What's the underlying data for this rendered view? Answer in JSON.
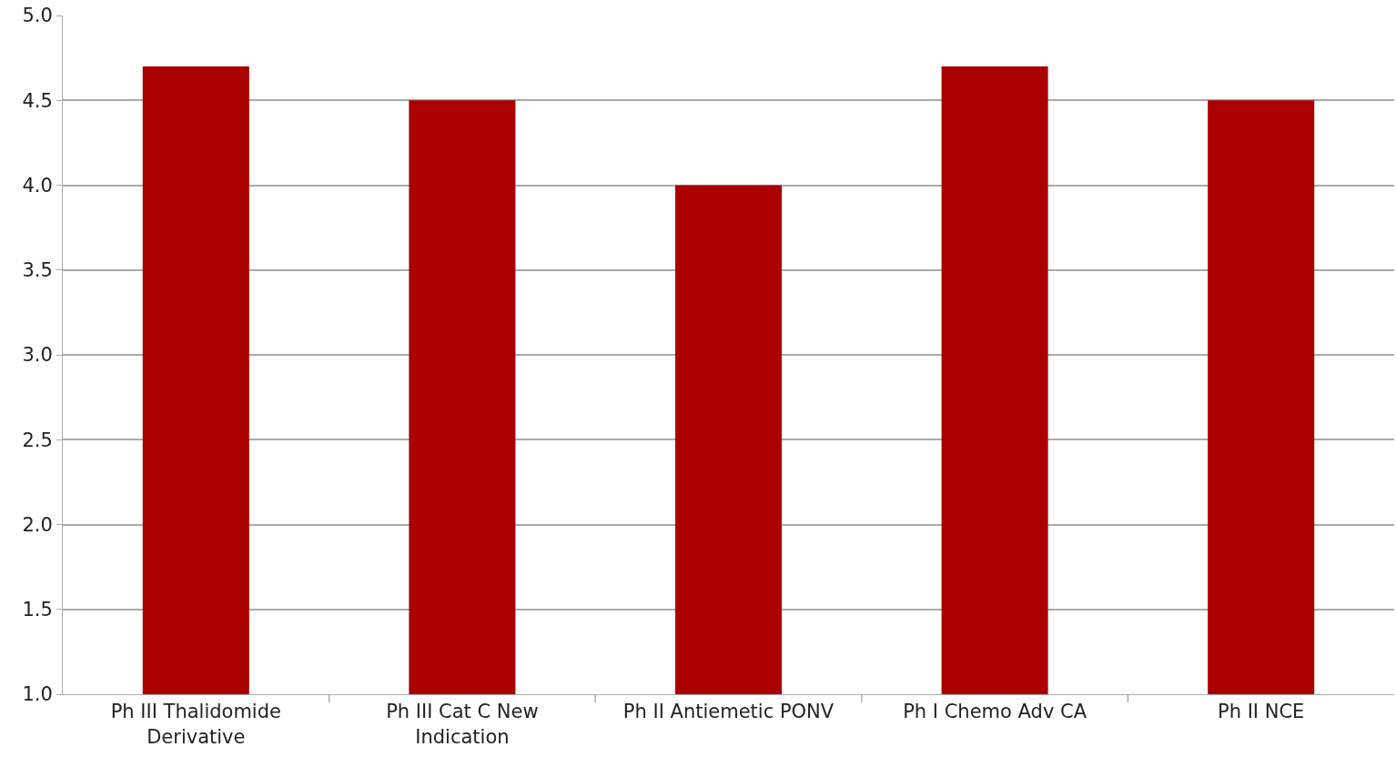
{
  "chart_data": {
    "type": "bar",
    "categories": [
      "Ph III Thalidomide Derivative",
      "Ph III Cat C New Indication",
      "Ph II Antiemetic PONV",
      "Ph I Chemo Adv CA",
      "Ph II NCE"
    ],
    "values": [
      4.7,
      4.5,
      4.0,
      4.7,
      4.5
    ],
    "color": "#aa0000",
    "ylim": [
      1.0,
      5.0
    ],
    "yticks": [
      {
        "value": 1,
        "label": "1.0"
      },
      {
        "value": 1.5,
        "label": "1.5"
      },
      {
        "value": 2,
        "label": "2.0"
      },
      {
        "value": 2.5,
        "label": "2.5"
      },
      {
        "value": 3,
        "label": "3.0"
      },
      {
        "value": 3.5,
        "label": "3.5"
      },
      {
        "value": 4,
        "label": "4.0"
      },
      {
        "value": 4.5,
        "label": "4.5"
      },
      {
        "value": 5,
        "label": "5.0"
      }
    ],
    "grid": "y"
  }
}
